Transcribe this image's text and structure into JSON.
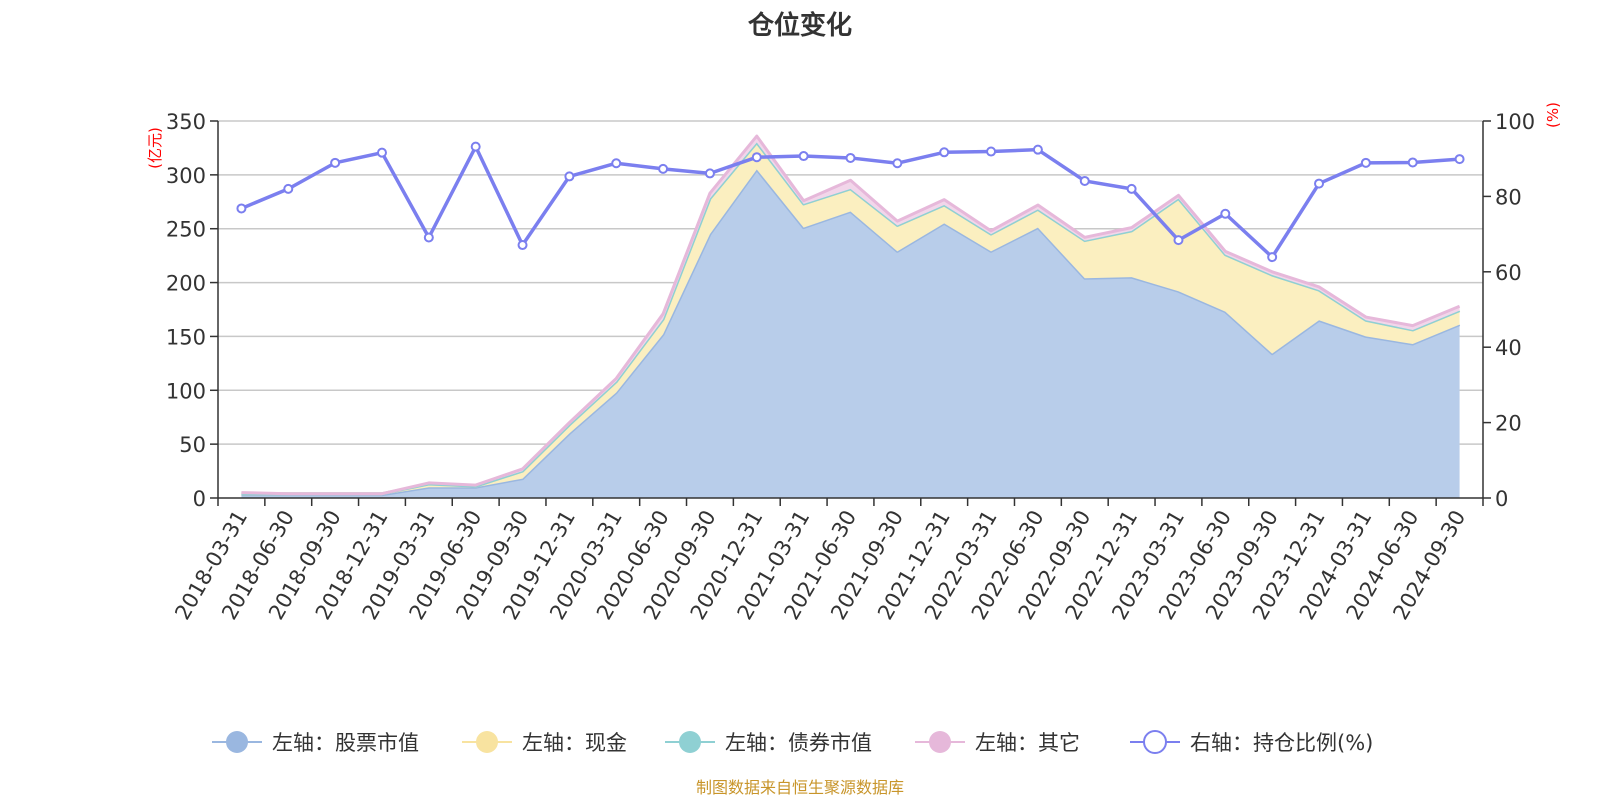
{
  "chart_data": {
    "type": "area",
    "title": "仓位变化",
    "source_note": "制图数据来自恒生聚源数据库",
    "left_axis": {
      "unit": "(亿元)",
      "min": 0,
      "max": 350,
      "ticks": [
        0,
        50,
        100,
        150,
        200,
        250,
        300,
        350
      ]
    },
    "right_axis": {
      "unit": "(%)",
      "min": 0,
      "max": 100,
      "ticks": [
        0,
        20,
        40,
        60,
        80,
        100
      ]
    },
    "categories": [
      "2018-03-31",
      "2018-06-30",
      "2018-09-30",
      "2018-12-31",
      "2019-03-31",
      "2019-06-30",
      "2019-09-30",
      "2019-12-31",
      "2020-03-31",
      "2020-06-30",
      "2020-09-30",
      "2020-12-31",
      "2021-03-31",
      "2021-06-30",
      "2021-09-30",
      "2021-12-31",
      "2022-03-31",
      "2022-06-30",
      "2022-09-30",
      "2022-12-31",
      "2023-03-31",
      "2023-06-30",
      "2023-09-30",
      "2023-12-31",
      "2024-03-31",
      "2024-06-30",
      "2024-09-30"
    ],
    "series": [
      {
        "name": "左轴：股票市值",
        "axis": "left",
        "stack": true,
        "color": "#9ab7e0",
        "fill": "#b8cdea",
        "values": [
          3,
          3,
          3,
          3,
          10,
          10,
          18,
          60,
          98,
          152,
          245,
          305,
          251,
          266,
          229,
          255,
          229,
          251,
          204,
          205,
          192,
          173,
          134,
          165,
          150,
          143,
          161
        ]
      },
      {
        "name": "左轴：现金",
        "axis": "left",
        "stack": true,
        "color": "#f8e3a0",
        "fill": "#fbefc0",
        "values": [
          1,
          1,
          1,
          1,
          3,
          1,
          7,
          8,
          10,
          14,
          33,
          25,
          22,
          21,
          24,
          17,
          16,
          17,
          35,
          43,
          86,
          53,
          73,
          28,
          15,
          13,
          13
        ]
      },
      {
        "name": "左轴：债券市值",
        "axis": "left",
        "stack": true,
        "color": "#8fd0d3",
        "fill": "#bfe6e8",
        "values": [
          0,
          0,
          0,
          0,
          0,
          0,
          0,
          0,
          0,
          0,
          0,
          0,
          0,
          0,
          0,
          0,
          0,
          0,
          0,
          0,
          0,
          0,
          0,
          0,
          0,
          0,
          0
        ]
      },
      {
        "name": "左轴：其它",
        "axis": "left",
        "stack": true,
        "color": "#e6b8da",
        "fill": "#f2d6ea",
        "values": [
          1,
          0,
          0,
          0,
          1,
          1,
          2,
          2,
          3,
          5,
          5,
          6,
          3,
          8,
          4,
          5,
          3,
          4,
          3,
          3,
          3,
          3,
          3,
          3,
          3,
          4,
          4
        ]
      },
      {
        "name": "右轴：持仓比例(%)",
        "axis": "right",
        "type": "line",
        "color": "#7b7fef",
        "values": [
          76.8,
          82.0,
          88.9,
          91.6,
          69.1,
          93.2,
          67.1,
          85.3,
          88.8,
          87.3,
          86.1,
          90.4,
          90.7,
          90.2,
          88.8,
          91.7,
          91.9,
          92.4,
          84.1,
          82.0,
          68.4,
          75.4,
          63.9,
          83.4,
          88.9,
          89.0,
          89.9
        ]
      }
    ]
  }
}
